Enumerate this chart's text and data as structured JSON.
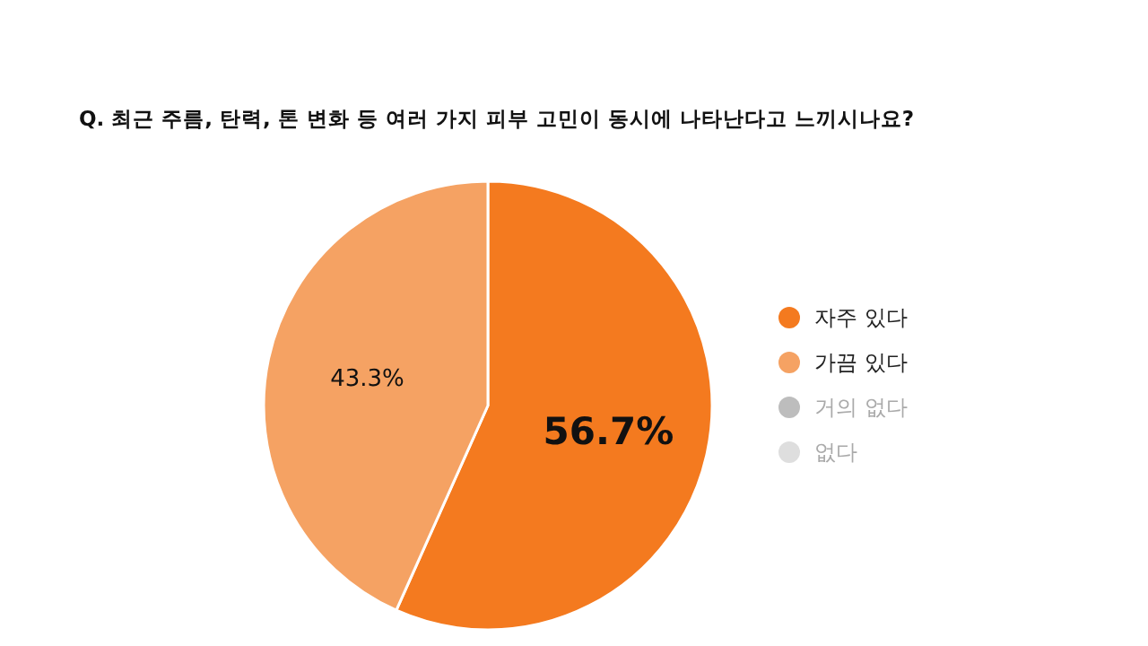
{
  "chart_data": {
    "type": "pie",
    "title": "Q. 최근 주름, 탄력, 톤 변화 등 여러 가지 피부 고민이 동시에 나타난다고 느끼시나요?",
    "categories": [
      "자주 있다",
      "가끔 있다",
      "거의 없다",
      "없다"
    ],
    "values": [
      56.7,
      43.3,
      0,
      0
    ],
    "colors": [
      "#f47a1f",
      "#f5a263",
      "#bdbdbd",
      "#dedede"
    ],
    "value_labels": [
      "56.7%",
      "43.3%",
      null,
      null
    ],
    "legend": "right"
  }
}
